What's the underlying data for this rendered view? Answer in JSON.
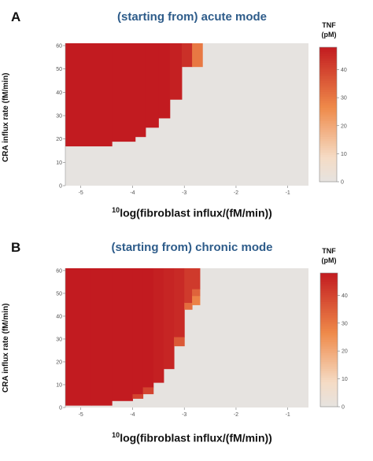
{
  "chart_data": [
    {
      "panel_label": "A",
      "type": "heatmap",
      "title": "(starting from) acute mode",
      "xlabel_sup": "10",
      "xlabel": "log(fibroblast  influx/(fM/min))",
      "ylabel": "CRA influx rate (fM/min)",
      "xlim": [
        -5.3,
        -0.6
      ],
      "ylim": [
        0,
        61
      ],
      "xticks": [
        "-5",
        "-4",
        "-3",
        "-2",
        "-1"
      ],
      "xtick_values": [
        -5,
        -4,
        -3,
        -2,
        -1
      ],
      "yticks": [
        "0",
        "10",
        "20",
        "30",
        "40",
        "50",
        "60"
      ],
      "ytick_values": [
        0,
        10,
        20,
        30,
        40,
        50,
        60
      ],
      "colorbar": {
        "title_line1": "TNF",
        "title_line2": "(pM)",
        "ticks": [
          "0",
          "10",
          "20",
          "30",
          "40"
        ],
        "tick_values": [
          0,
          10,
          20,
          30,
          40
        ],
        "max": 48
      },
      "columns": [
        {
          "x0": -5.3,
          "x1": -4.4,
          "cells": [
            {
              "y0": 17,
              "y1": 61,
              "tnf": 48
            }
          ]
        },
        {
          "x0": -4.4,
          "x1": -3.95,
          "cells": [
            {
              "y0": 19,
              "y1": 61,
              "tnf": 48
            }
          ]
        },
        {
          "x0": -3.95,
          "x1": -3.75,
          "cells": [
            {
              "y0": 21,
              "y1": 61,
              "tnf": 48
            }
          ]
        },
        {
          "x0": -3.75,
          "x1": -3.5,
          "cells": [
            {
              "y0": 25,
              "y1": 61,
              "tnf": 48
            }
          ]
        },
        {
          "x0": -3.5,
          "x1": -3.28,
          "cells": [
            {
              "y0": 29,
              "y1": 61,
              "tnf": 48
            }
          ]
        },
        {
          "x0": -3.28,
          "x1": -3.05,
          "cells": [
            {
              "y0": 37,
              "y1": 61,
              "tnf": 47
            }
          ]
        },
        {
          "x0": -3.05,
          "x1": -2.85,
          "cells": [
            {
              "y0": 51,
              "y1": 61,
              "tnf": 44
            }
          ]
        },
        {
          "x0": -2.85,
          "x1": -2.65,
          "cells": [
            {
              "y0": 51,
              "y1": 61,
              "tnf": 30
            }
          ]
        }
      ]
    },
    {
      "panel_label": "B",
      "type": "heatmap",
      "title": "(starting from) chronic mode",
      "xlabel_sup": "10",
      "xlabel": "log(fibroblast  influx/(fM/min))",
      "ylabel": "CRA influx rate (fM/min)",
      "xlim": [
        -5.3,
        -0.6
      ],
      "ylim": [
        0,
        61
      ],
      "xticks": [
        "-5",
        "-4",
        "-3",
        "-2",
        "-1"
      ],
      "xtick_values": [
        -5,
        -4,
        -3,
        -2,
        -1
      ],
      "yticks": [
        "0",
        "10",
        "20",
        "30",
        "40",
        "50",
        "60"
      ],
      "ytick_values": [
        0,
        10,
        20,
        30,
        40,
        50,
        60
      ],
      "colorbar": {
        "title_line1": "TNF",
        "title_line2": "(pM)",
        "ticks": [
          "0",
          "10",
          "20",
          "30",
          "40"
        ],
        "tick_values": [
          0,
          10,
          20,
          30,
          40
        ],
        "max": 48
      },
      "columns": [
        {
          "x0": -5.3,
          "x1": -4.8,
          "cells": [
            {
              "y0": 1,
              "y1": 61,
              "tnf": 48
            }
          ]
        },
        {
          "x0": -4.8,
          "x1": -4.4,
          "cells": [
            {
              "y0": 1,
              "y1": 61,
              "tnf": 48
            }
          ]
        },
        {
          "x0": -4.4,
          "x1": -4.0,
          "cells": [
            {
              "y0": 3,
              "y1": 61,
              "tnf": 48
            }
          ]
        },
        {
          "x0": -4.0,
          "x1": -3.8,
          "cells": [
            {
              "y0": 4,
              "y1": 6,
              "tnf": 40
            },
            {
              "y0": 6,
              "y1": 61,
              "tnf": 48
            }
          ]
        },
        {
          "x0": -3.8,
          "x1": -3.6,
          "cells": [
            {
              "y0": 6,
              "y1": 9,
              "tnf": 40
            },
            {
              "y0": 9,
              "y1": 61,
              "tnf": 48
            }
          ]
        },
        {
          "x0": -3.6,
          "x1": -3.4,
          "cells": [
            {
              "y0": 11,
              "y1": 61,
              "tnf": 47
            }
          ]
        },
        {
          "x0": -3.4,
          "x1": -3.2,
          "cells": [
            {
              "y0": 17,
              "y1": 61,
              "tnf": 46
            }
          ]
        },
        {
          "x0": -3.2,
          "x1": -3.0,
          "cells": [
            {
              "y0": 27,
              "y1": 31,
              "tnf": 36
            },
            {
              "y0": 31,
              "y1": 61,
              "tnf": 45
            }
          ]
        },
        {
          "x0": -3.0,
          "x1": -2.85,
          "cells": [
            {
              "y0": 43,
              "y1": 46,
              "tnf": 32
            },
            {
              "y0": 46,
              "y1": 61,
              "tnf": 42
            }
          ]
        },
        {
          "x0": -2.85,
          "x1": -2.7,
          "cells": [
            {
              "y0": 45,
              "y1": 49,
              "tnf": 28
            },
            {
              "y0": 49,
              "y1": 52,
              "tnf": 34
            },
            {
              "y0": 52,
              "y1": 61,
              "tnf": 42
            }
          ]
        }
      ]
    }
  ],
  "colors": {
    "background_cell": "#e6e3e0",
    "high": "#c21b20",
    "mid": "#ef8a4a",
    "low": "#f5dcc5",
    "title": "#2e5c8a"
  }
}
